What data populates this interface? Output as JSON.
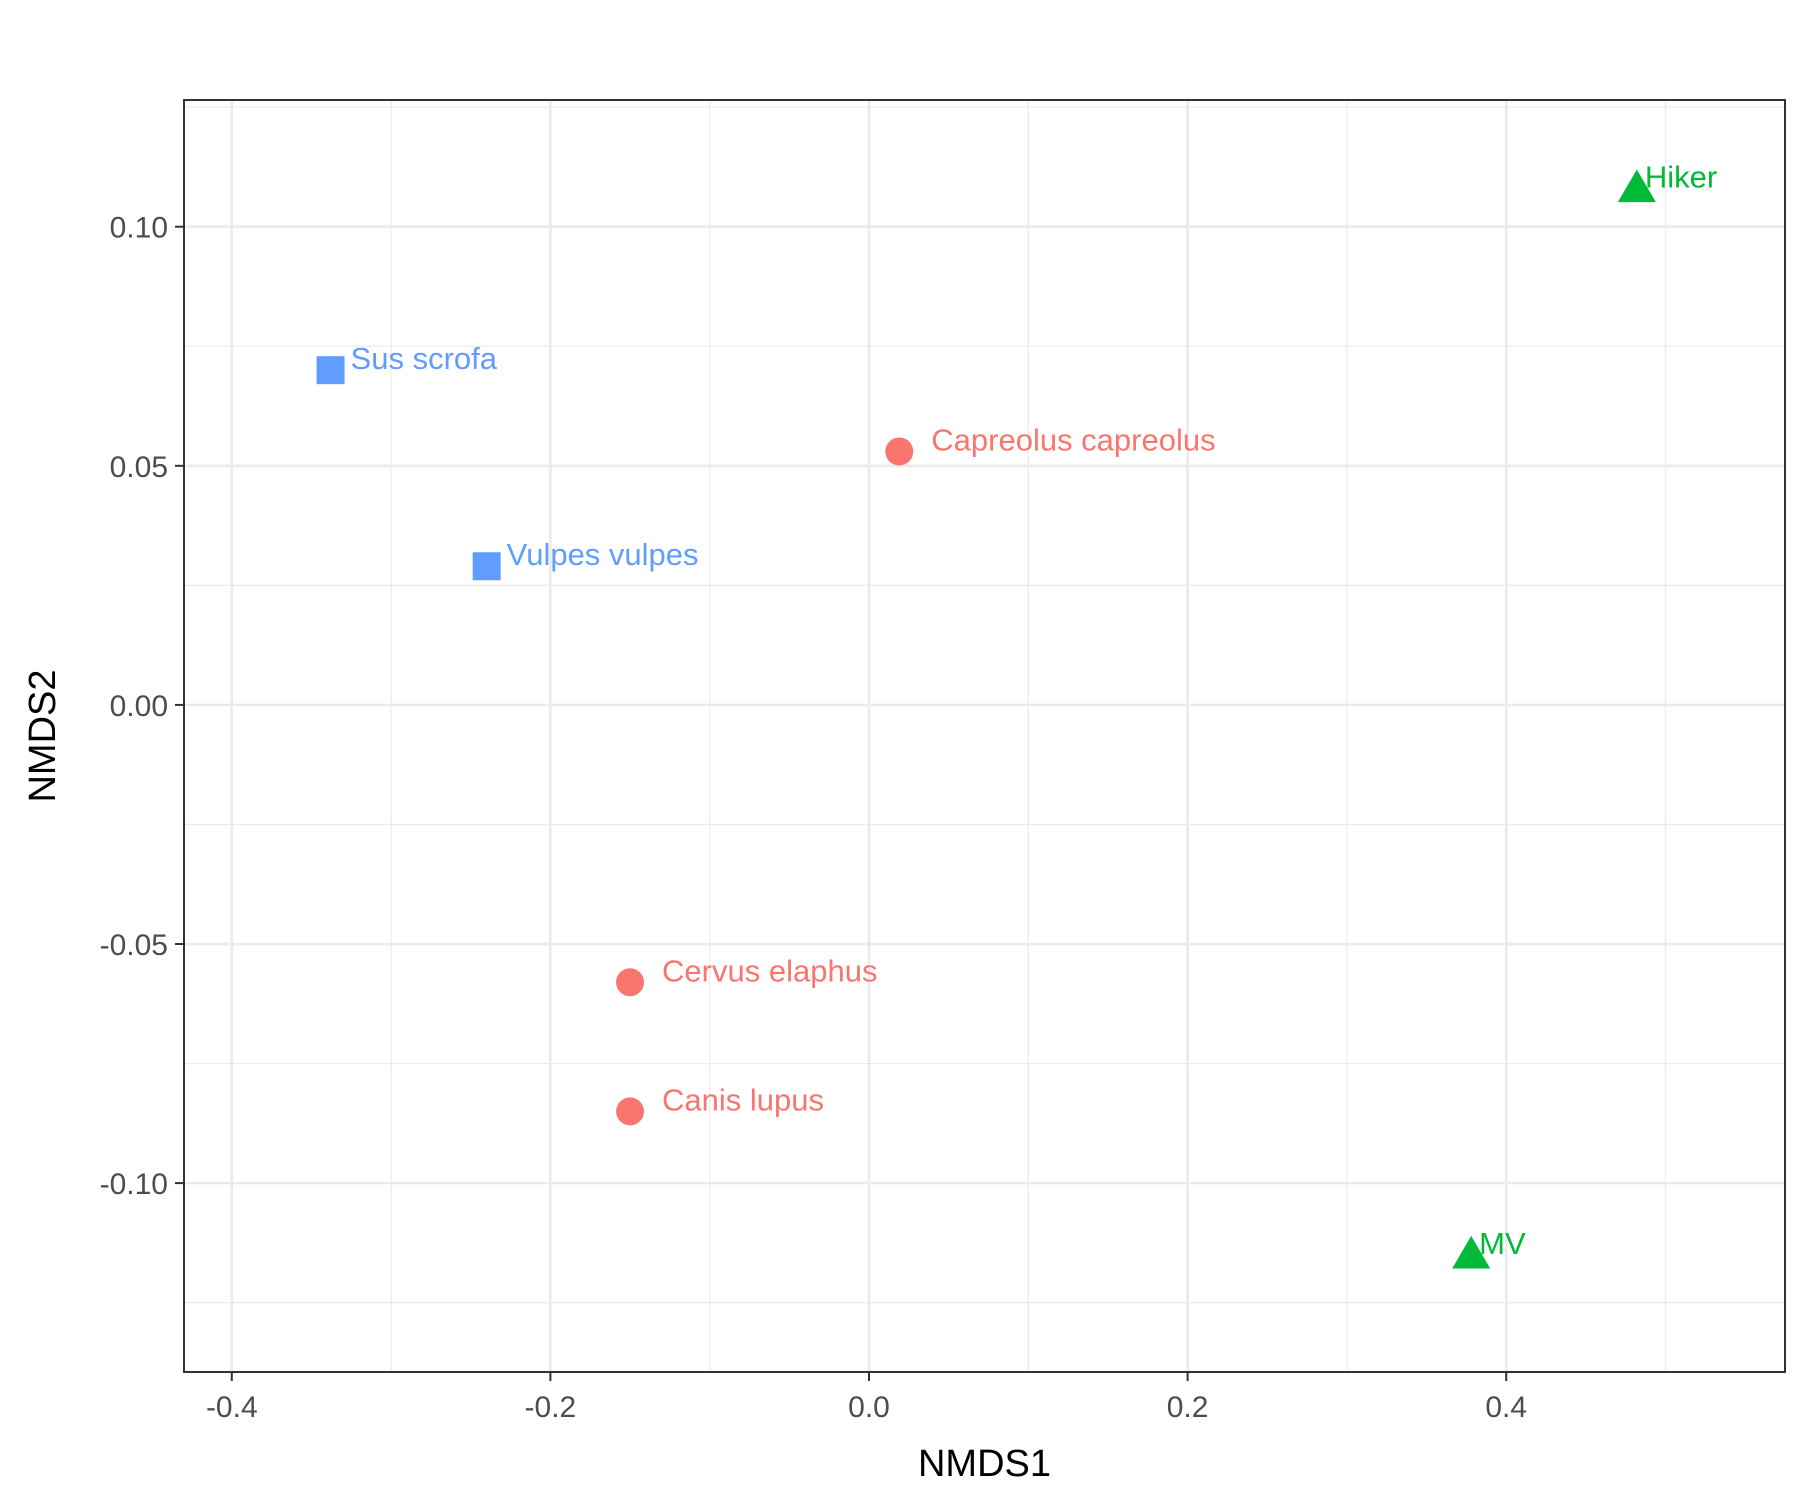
{
  "chart_data": {
    "type": "scatter",
    "xlabel": "NMDS1",
    "ylabel": "NMDS2",
    "xlim": [
      -0.43,
      0.575
    ],
    "ylim": [
      -0.1395,
      0.1265
    ],
    "x_ticks": [
      -0.4,
      -0.2,
      0.0,
      0.2,
      0.4
    ],
    "x_tick_labels": [
      "-0.4",
      "-0.2",
      "0.0",
      "0.2",
      "0.4"
    ],
    "y_ticks": [
      -0.1,
      -0.05,
      0.0,
      0.05,
      0.1
    ],
    "y_tick_labels": [
      "-0.10",
      "-0.05",
      "0.00",
      "0.05",
      "0.10"
    ],
    "grid": true,
    "legend": "none",
    "groups": [
      {
        "shape": "circle",
        "color": "#F8766D",
        "points": [
          {
            "label": "Capreolus capreolus",
            "x": 0.019,
            "y": 0.053
          },
          {
            "label": "Cervus elaphus",
            "x": -0.15,
            "y": -0.058
          },
          {
            "label": "Canis lupus",
            "x": -0.15,
            "y": -0.085
          }
        ]
      },
      {
        "shape": "triangle",
        "color": "#00BA38",
        "points": [
          {
            "label": "Hiker",
            "x": 0.482,
            "y": 0.108
          },
          {
            "label": "MV",
            "x": 0.378,
            "y": -0.115
          }
        ]
      },
      {
        "shape": "square",
        "color": "#619CFF",
        "points": [
          {
            "label": "Sus scrofa",
            "x": -0.338,
            "y": 0.07
          },
          {
            "label": "Vulpes vulpes",
            "x": -0.24,
            "y": 0.029
          }
        ]
      }
    ]
  }
}
